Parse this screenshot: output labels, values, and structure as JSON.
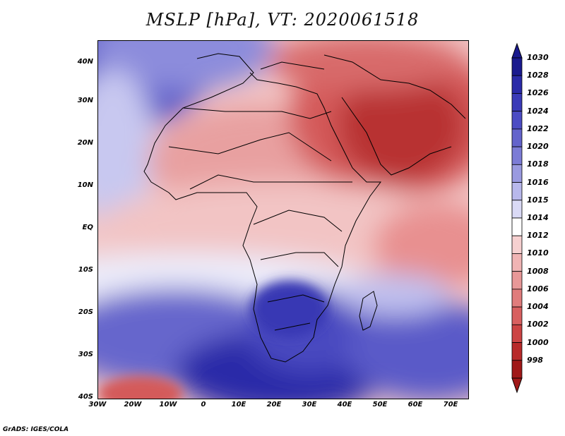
{
  "title": "MSLP [hPa], VT: 2020061518",
  "credit": "GrADS: IGES/COLA",
  "lat_labels": [
    "40N",
    "30N",
    "20N",
    "10N",
    "EQ",
    "10S",
    "20S",
    "30S",
    "40S"
  ],
  "lon_labels": [
    "30W",
    "20W",
    "10W",
    "0",
    "10E",
    "20E",
    "30E",
    "40E",
    "50E",
    "60E",
    "70E"
  ],
  "colorbar": {
    "labels": [
      "1030",
      "1028",
      "1026",
      "1024",
      "1022",
      "1020",
      "1018",
      "1016",
      "1015",
      "1014",
      "1012",
      "1010",
      "1008",
      "1006",
      "1004",
      "1002",
      "1000",
      "998"
    ],
    "colors": [
      "#1a1a8e",
      "#2a2aa8",
      "#3a3ab8",
      "#4c4cc4",
      "#6464cc",
      "#7c7cd6",
      "#9a9ae0",
      "#b8b8ec",
      "#dadaf6",
      "#ffffff",
      "#f6d0d0",
      "#f0b4b4",
      "#e89898",
      "#e07c7c",
      "#d86060",
      "#cc4444",
      "#b82a2a",
      "#a01818"
    ]
  }
}
